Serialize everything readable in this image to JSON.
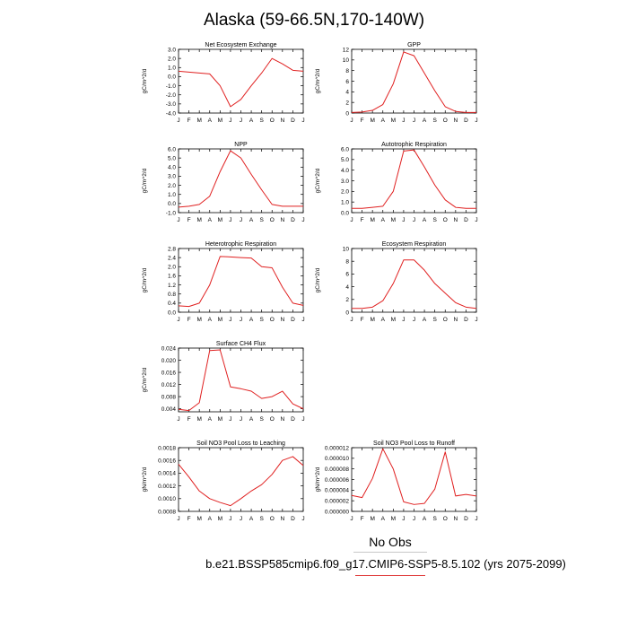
{
  "page": {
    "title": "Alaska (59-66.5N,170-140W)",
    "no_obs": "No Obs",
    "case_name": "b.e21.BSSP585cmip6.f09_g17.CMIP6-SSP5-8.5.102 (yrs 2075-2099)",
    "line_color": "#e02020",
    "obs_rule_color": "#c8c8c8"
  },
  "chart_data": [
    {
      "type": "line",
      "title": "Net Ecosystem Exchange",
      "ylabel": "gC/m^2/d",
      "x": [
        "J",
        "F",
        "M",
        "A",
        "M",
        "J",
        "J",
        "A",
        "S",
        "O",
        "N",
        "D",
        "J"
      ],
      "values": [
        0.6,
        0.5,
        0.4,
        0.3,
        -1.0,
        -3.3,
        -2.5,
        -1.0,
        0.4,
        2.0,
        1.4,
        0.7,
        0.6
      ],
      "ylim": [
        -4.0,
        3.0
      ],
      "yticks": [
        "3.0",
        "2.0",
        "1.0",
        "0.0",
        "-1.0",
        "-2.0",
        "-3.0",
        "-4.0"
      ],
      "ytick_values": [
        3,
        2,
        1,
        0,
        -1,
        -2,
        -3,
        -4
      ]
    },
    {
      "type": "line",
      "title": "GPP",
      "ylabel": "gC/m^2/d",
      "x": [
        "J",
        "F",
        "M",
        "A",
        "M",
        "J",
        "J",
        "A",
        "S",
        "O",
        "N",
        "D",
        "J"
      ],
      "values": [
        0.1,
        0.2,
        0.5,
        1.6,
        5.5,
        11.5,
        10.8,
        7.5,
        4.2,
        1.2,
        0.3,
        0.1,
        0.1
      ],
      "ylim": [
        0,
        12
      ],
      "yticks": [
        "12",
        "10",
        "8",
        "6",
        "4",
        "2",
        "0"
      ],
      "ytick_values": [
        12,
        10,
        8,
        6,
        4,
        2,
        0
      ]
    },
    {
      "type": "line",
      "title": "NPP",
      "ylabel": "gC/m^2/d",
      "x": [
        "J",
        "F",
        "M",
        "A",
        "M",
        "J",
        "J",
        "A",
        "S",
        "O",
        "N",
        "D",
        "J"
      ],
      "values": [
        -0.4,
        -0.3,
        -0.1,
        0.8,
        3.5,
        5.8,
        5.0,
        3.2,
        1.5,
        -0.1,
        -0.3,
        -0.3,
        -0.3
      ],
      "ylim": [
        -1.0,
        6.0
      ],
      "yticks": [
        "6.0",
        "5.0",
        "4.0",
        "3.0",
        "2.0",
        "1.0",
        "0.0",
        "-1.0"
      ],
      "ytick_values": [
        6,
        5,
        4,
        3,
        2,
        1,
        0,
        -1
      ]
    },
    {
      "type": "line",
      "title": "Autotrophic Respiration",
      "ylabel": "gC/m^2/d",
      "x": [
        "J",
        "F",
        "M",
        "A",
        "M",
        "J",
        "J",
        "A",
        "S",
        "O",
        "N",
        "D",
        "J"
      ],
      "values": [
        0.4,
        0.4,
        0.5,
        0.6,
        2.0,
        5.8,
        5.9,
        4.3,
        2.6,
        1.2,
        0.5,
        0.4,
        0.4
      ],
      "ylim": [
        0,
        6.0
      ],
      "yticks": [
        "6.0",
        "5.0",
        "4.0",
        "3.0",
        "2.0",
        "1.0",
        "0.0"
      ],
      "ytick_values": [
        6,
        5,
        4,
        3,
        2,
        1,
        0
      ]
    },
    {
      "type": "line",
      "title": "Heterotrophic Respiration",
      "ylabel": "gC/m^2/d",
      "x": [
        "J",
        "F",
        "M",
        "A",
        "M",
        "J",
        "J",
        "A",
        "S",
        "O",
        "N",
        "D",
        "J"
      ],
      "values": [
        0.28,
        0.25,
        0.4,
        1.2,
        2.45,
        2.43,
        2.4,
        2.38,
        2.0,
        1.95,
        1.1,
        0.4,
        0.3
      ],
      "ylim": [
        0,
        2.8
      ],
      "yticks": [
        "2.8",
        "2.4",
        "2.0",
        "1.6",
        "1.2",
        "0.8",
        "0.4",
        "0.0"
      ],
      "ytick_values": [
        2.8,
        2.4,
        2.0,
        1.6,
        1.2,
        0.8,
        0.4,
        0.0
      ]
    },
    {
      "type": "line",
      "title": "Ecosystem Respiration",
      "ylabel": "gC/m^2/d",
      "x": [
        "J",
        "F",
        "M",
        "A",
        "M",
        "J",
        "J",
        "A",
        "S",
        "O",
        "N",
        "D",
        "J"
      ],
      "values": [
        0.6,
        0.6,
        0.8,
        1.8,
        4.5,
        8.2,
        8.2,
        6.6,
        4.5,
        3.0,
        1.5,
        0.8,
        0.6
      ],
      "ylim": [
        0,
        10
      ],
      "yticks": [
        "10",
        "8",
        "6",
        "4",
        "2",
        "0"
      ],
      "ytick_values": [
        10,
        8,
        6,
        4,
        2,
        0
      ]
    },
    {
      "type": "line",
      "title": "Surface CH4 Flux",
      "ylabel": "gC/m^2/d",
      "x": [
        "J",
        "F",
        "M",
        "A",
        "M",
        "J",
        "J",
        "A",
        "S",
        "O",
        "N",
        "D",
        "J"
      ],
      "values": [
        0.0038,
        0.0034,
        0.006,
        0.0232,
        0.0234,
        0.0112,
        0.0106,
        0.0098,
        0.0074,
        0.008,
        0.0098,
        0.0056,
        0.004
      ],
      "ylim": [
        0.003,
        0.024
      ],
      "yticks": [
        "0.024",
        "0.020",
        "0.016",
        "0.012",
        "0.008",
        "0.004"
      ],
      "ytick_values": [
        0.024,
        0.02,
        0.016,
        0.012,
        0.008,
        0.004
      ]
    },
    {
      "type": "line",
      "title": "Soil NO3 Pool Loss to Leaching",
      "ylabel": "gN/m^2/d",
      "x": [
        "J",
        "F",
        "M",
        "A",
        "M",
        "J",
        "J",
        "A",
        "S",
        "O",
        "N",
        "D",
        "J"
      ],
      "values": [
        0.00154,
        0.00134,
        0.00112,
        0.001,
        0.00094,
        0.00089,
        0.001,
        0.00112,
        0.00122,
        0.00138,
        0.0016,
        0.00166,
        0.00152
      ],
      "ylim": [
        0.0008,
        0.0018
      ],
      "yticks": [
        "0.0018",
        "0.0016",
        "0.0014",
        "0.0012",
        "0.0010",
        "0.0008"
      ],
      "ytick_values": [
        0.0018,
        0.0016,
        0.0014,
        0.0012,
        0.001,
        0.0008
      ]
    },
    {
      "type": "line",
      "title": "Soil NO3 Pool Loss to Runoff",
      "ylabel": "gN/m^2/d",
      "x": [
        "J",
        "F",
        "M",
        "A",
        "M",
        "J",
        "J",
        "A",
        "S",
        "O",
        "N",
        "D",
        "J"
      ],
      "values": [
        3e-06,
        2.6e-06,
        6.2e-06,
        1.18e-05,
        8e-06,
        1.8e-06,
        1.3e-06,
        1.5e-06,
        4.2e-06,
        1.12e-05,
        2.9e-06,
        3.2e-06,
        2.9e-06
      ],
      "ylim": [
        0,
        1.2e-05
      ],
      "yticks": [
        "0.000012",
        "0.000010",
        "0.000008",
        "0.000006",
        "0.000004",
        "0.000002",
        "0.000000"
      ],
      "ytick_values": [
        1.2e-05,
        1e-05,
        8e-06,
        6e-06,
        4e-06,
        2e-06,
        0.0
      ]
    }
  ]
}
